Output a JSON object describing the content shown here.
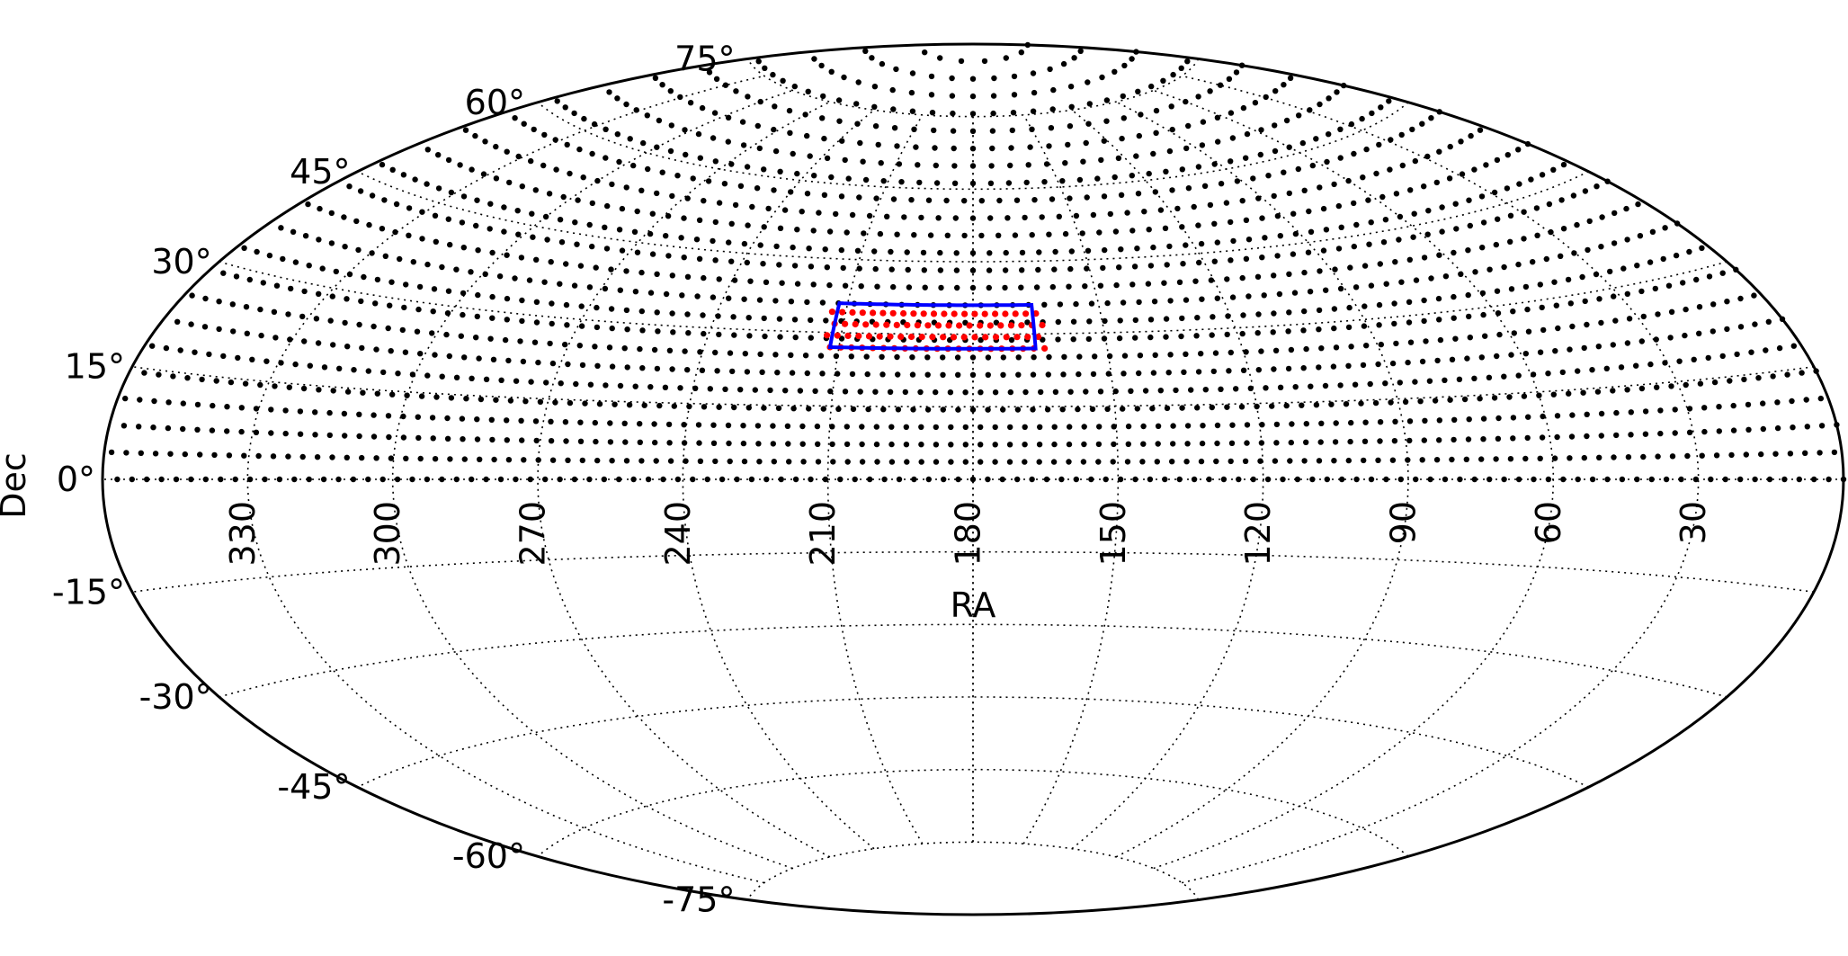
{
  "chart_data": {
    "type": "scatter",
    "projection": "aitoff",
    "xlabel": "RA",
    "ylabel": "Dec",
    "ra_ticks": [
      "330",
      "300",
      "270",
      "240",
      "210",
      "180",
      "150",
      "120",
      "90",
      "60",
      "30"
    ],
    "dec_ticks": [
      "75°",
      "60°",
      "45°",
      "30°",
      "15°",
      "0°",
      "-15°",
      "-30°",
      "-45°",
      "-60°",
      "-75°"
    ],
    "ra_values": [
      330,
      300,
      270,
      240,
      210,
      180,
      150,
      120,
      90,
      60,
      30
    ],
    "dec_values": [
      75,
      60,
      45,
      30,
      15,
      0,
      -15,
      -30,
      -45,
      -60,
      -75
    ],
    "grid": true,
    "series": [
      {
        "kind": "points",
        "color": "#000000",
        "dec_range": [
          0,
          88
        ],
        "ra_range": [
          0,
          360
        ],
        "row_spacing_deg": 3.6
      },
      {
        "kind": "points",
        "color": "#ff0000",
        "ra_range": [
          164,
          214
        ],
        "dec_range": [
          27,
          36
        ],
        "row_spacing_deg": 2.4
      },
      {
        "kind": "outline",
        "color": "#0000ff",
        "ra_range": [
          166,
          212
        ],
        "dec_range": [
          27,
          36
        ]
      }
    ]
  }
}
